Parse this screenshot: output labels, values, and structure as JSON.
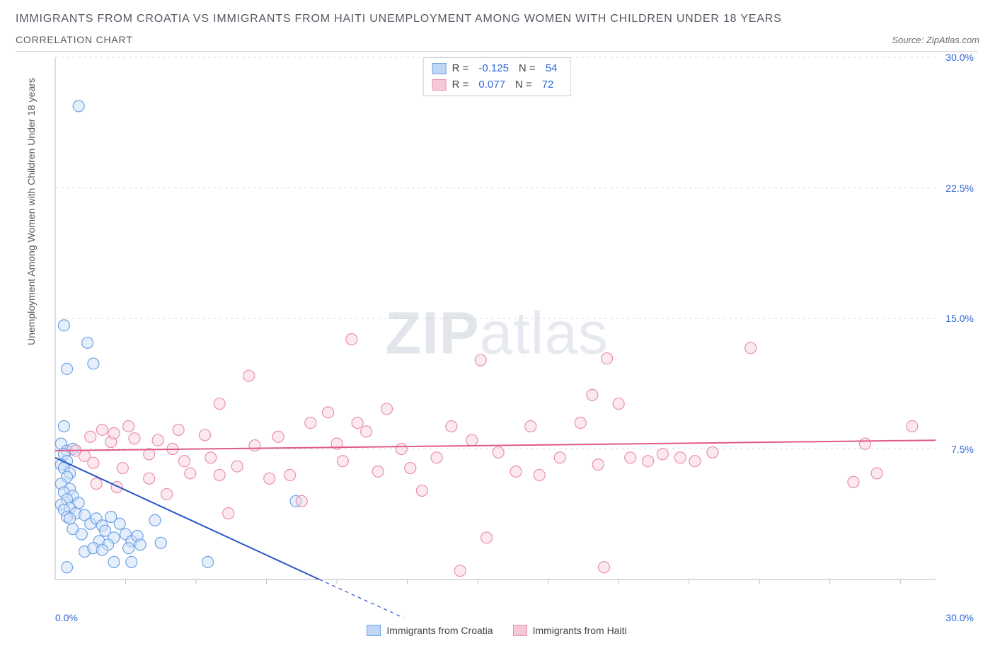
{
  "title_line1": "IMMIGRANTS FROM CROATIA VS IMMIGRANTS FROM HAITI UNEMPLOYMENT AMONG WOMEN WITH CHILDREN UNDER 18 YEARS",
  "title_line2": "CORRELATION CHART",
  "source_text": "Source: ZipAtlas.com",
  "y_axis_label": "Unemployment Among Women with Children Under 18 years",
  "watermark_a": "ZIP",
  "watermark_b": "atlas",
  "chart": {
    "type": "scatter",
    "background_color": "#ffffff",
    "grid_color": "#d8dce3",
    "axis_color": "#b9bec7",
    "x_range": [
      0,
      30
    ],
    "y_range": [
      0,
      30
    ],
    "y_ticks": [
      7.5,
      15.0,
      22.5,
      30.0
    ],
    "y_tick_labels": [
      "7.5%",
      "15.0%",
      "22.5%",
      "30.0%"
    ],
    "x_tick_left": "0.0%",
    "x_tick_right": "30.0%",
    "x_minor_ticks": [
      2.4,
      4.8,
      7.2,
      9.6,
      12,
      14.4,
      16.8,
      19.2,
      21.6,
      24,
      26.4,
      28.8
    ],
    "marker_radius": 8,
    "marker_stroke_width": 1.2,
    "series": [
      {
        "name": "Immigrants from Croatia",
        "fill": "#cfe0f7",
        "stroke": "#6ea2e8",
        "fill_opacity": 0.55,
        "legend_fill": "#bfd6f4",
        "legend_stroke": "#6ea2e8",
        "stats": {
          "R": "-0.125",
          "N": "54"
        },
        "trend": {
          "x1": 0,
          "y1": 7.0,
          "x2": 9.0,
          "y2": 0.0,
          "color": "#2857c7",
          "width": 2
        },
        "trend_dash": {
          "x1": 9.0,
          "y1": 0.0,
          "x2": 15.0,
          "y2": -4.6,
          "color": "#2857c7",
          "width": 1.2
        },
        "points": [
          [
            0.8,
            27.2
          ],
          [
            0.3,
            14.6
          ],
          [
            0.4,
            12.1
          ],
          [
            1.1,
            13.6
          ],
          [
            1.3,
            12.4
          ],
          [
            0.3,
            8.8
          ],
          [
            0.2,
            7.8
          ],
          [
            0.4,
            7.4
          ],
          [
            0.6,
            7.5
          ],
          [
            0.3,
            7.2
          ],
          [
            0.4,
            6.8
          ],
          [
            0.2,
            6.6
          ],
          [
            0.3,
            6.4
          ],
          [
            0.5,
            6.1
          ],
          [
            0.4,
            5.9
          ],
          [
            0.2,
            5.5
          ],
          [
            0.5,
            5.2
          ],
          [
            0.3,
            5.0
          ],
          [
            0.6,
            4.8
          ],
          [
            0.4,
            4.6
          ],
          [
            0.2,
            4.3
          ],
          [
            0.8,
            4.4
          ],
          [
            0.5,
            4.1
          ],
          [
            0.3,
            4.0
          ],
          [
            0.7,
            3.8
          ],
          [
            0.4,
            3.6
          ],
          [
            0.5,
            3.5
          ],
          [
            1.0,
            3.7
          ],
          [
            1.2,
            3.2
          ],
          [
            1.4,
            3.5
          ],
          [
            1.6,
            3.1
          ],
          [
            1.7,
            2.8
          ],
          [
            1.9,
            3.6
          ],
          [
            2.0,
            2.4
          ],
          [
            2.2,
            3.2
          ],
          [
            1.5,
            2.2
          ],
          [
            1.8,
            2.0
          ],
          [
            1.0,
            1.6
          ],
          [
            1.3,
            1.8
          ],
          [
            1.6,
            1.7
          ],
          [
            2.4,
            2.6
          ],
          [
            2.6,
            2.2
          ],
          [
            2.8,
            2.5
          ],
          [
            2.5,
            1.8
          ],
          [
            2.9,
            2.0
          ],
          [
            3.4,
            3.4
          ],
          [
            3.6,
            2.1
          ],
          [
            0.4,
            0.7
          ],
          [
            2.0,
            1.0
          ],
          [
            2.6,
            1.0
          ],
          [
            5.2,
            1.0
          ],
          [
            8.2,
            4.5
          ],
          [
            0.6,
            2.9
          ],
          [
            0.9,
            2.6
          ]
        ]
      },
      {
        "name": "Immigrants from Haiti",
        "fill": "#f7d3dd",
        "stroke": "#e98fb0",
        "fill_opacity": 0.5,
        "legend_fill": "#f5c8d5",
        "legend_stroke": "#e98fb0",
        "stats": {
          "R": "0.077",
          "N": "72"
        },
        "trend": {
          "x1": 0,
          "y1": 7.4,
          "x2": 30,
          "y2": 8.0,
          "color": "#e05a8d",
          "width": 2
        },
        "points": [
          [
            0.7,
            7.4
          ],
          [
            1.0,
            7.1
          ],
          [
            1.2,
            8.2
          ],
          [
            1.3,
            6.7
          ],
          [
            1.6,
            8.6
          ],
          [
            1.9,
            7.9
          ],
          [
            2.0,
            8.4
          ],
          [
            2.3,
            6.4
          ],
          [
            2.7,
            8.1
          ],
          [
            2.5,
            8.8
          ],
          [
            3.2,
            7.2
          ],
          [
            3.5,
            8.0
          ],
          [
            3.2,
            5.8
          ],
          [
            4.0,
            7.5
          ],
          [
            4.2,
            8.6
          ],
          [
            4.4,
            6.8
          ],
          [
            4.6,
            6.1
          ],
          [
            5.1,
            8.3
          ],
          [
            5.3,
            7.0
          ],
          [
            5.6,
            10.1
          ],
          [
            5.6,
            6.0
          ],
          [
            5.9,
            3.8
          ],
          [
            6.2,
            6.5
          ],
          [
            6.6,
            11.7
          ],
          [
            6.8,
            7.7
          ],
          [
            7.3,
            5.8
          ],
          [
            7.6,
            8.2
          ],
          [
            8.0,
            6.0
          ],
          [
            8.4,
            4.5
          ],
          [
            8.7,
            9.0
          ],
          [
            9.3,
            9.6
          ],
          [
            9.6,
            7.8
          ],
          [
            9.8,
            6.8
          ],
          [
            10.1,
            13.8
          ],
          [
            10.3,
            9.0
          ],
          [
            10.6,
            8.5
          ],
          [
            11.0,
            6.2
          ],
          [
            11.3,
            9.8
          ],
          [
            11.8,
            7.5
          ],
          [
            12.1,
            6.4
          ],
          [
            12.5,
            5.1
          ],
          [
            13.0,
            7.0
          ],
          [
            13.5,
            8.8
          ],
          [
            13.8,
            0.5
          ],
          [
            14.2,
            8.0
          ],
          [
            14.5,
            12.6
          ],
          [
            14.7,
            2.4
          ],
          [
            15.1,
            7.3
          ],
          [
            15.7,
            6.2
          ],
          [
            16.2,
            8.8
          ],
          [
            16.5,
            6.0
          ],
          [
            17.2,
            7.0
          ],
          [
            17.9,
            9.0
          ],
          [
            18.3,
            10.6
          ],
          [
            18.5,
            6.6
          ],
          [
            18.7,
            0.7
          ],
          [
            18.8,
            12.7
          ],
          [
            19.2,
            10.1
          ],
          [
            19.6,
            7.0
          ],
          [
            20.2,
            6.8
          ],
          [
            20.7,
            7.2
          ],
          [
            21.3,
            7.0
          ],
          [
            21.8,
            6.8
          ],
          [
            22.4,
            7.3
          ],
          [
            23.7,
            13.3
          ],
          [
            27.2,
            5.6
          ],
          [
            27.6,
            7.8
          ],
          [
            28.0,
            6.1
          ],
          [
            29.2,
            8.8
          ],
          [
            1.4,
            5.5
          ],
          [
            2.1,
            5.3
          ],
          [
            3.8,
            4.9
          ]
        ]
      }
    ]
  },
  "legend_bottom": [
    {
      "label": "Immigrants from Croatia",
      "fill": "#bfd6f4",
      "stroke": "#6ea2e8"
    },
    {
      "label": "Immigrants from Haiti",
      "fill": "#f5c8d5",
      "stroke": "#e98fb0"
    }
  ]
}
